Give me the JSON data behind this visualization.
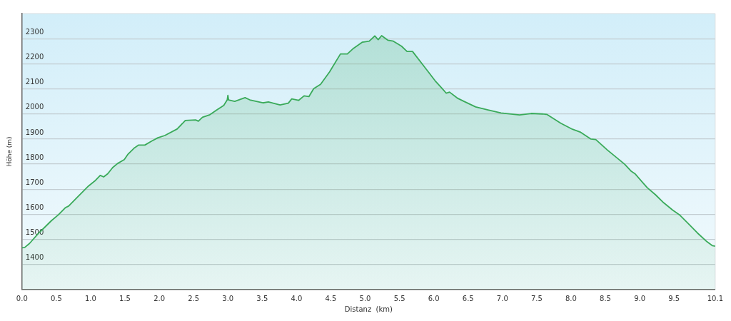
{
  "chart_data": {
    "type": "area",
    "xlabel": "Distanz  (km)",
    "ylabel": "Höhe (m)",
    "xlim": [
      0,
      10.1
    ],
    "xticks": [
      {
        "value": 0,
        "label": "0.0"
      },
      0.5,
      {
        "value": 1,
        "label": "1.0"
      },
      1.5,
      {
        "value": 2,
        "label": "2.0"
      },
      2.5,
      {
        "value": 3,
        "label": "3.0"
      },
      3.5,
      {
        "value": 4,
        "label": "4.0"
      },
      4.5,
      {
        "value": 5,
        "label": "5.0"
      },
      5.5,
      {
        "value": 6,
        "label": "6.0"
      },
      6.5,
      {
        "value": 7,
        "label": "7.0"
      },
      7.5,
      {
        "value": 8,
        "label": "8.0"
      },
      8.5,
      {
        "value": 9,
        "label": "9.0"
      },
      9.5,
      10.1
    ],
    "ylim": [
      1300,
      2400
    ],
    "yticks": [
      1400,
      1500,
      1600,
      1700,
      1800,
      1900,
      2000,
      2100,
      2200,
      2300
    ],
    "grid": "y",
    "legend": false,
    "marker": "none",
    "line_style": "solid",
    "series": [
      {
        "color": "#3aaa5a",
        "x": [
          0,
          0.04,
          0.11,
          0.24,
          0.33,
          0.43,
          0.53,
          0.63,
          0.68,
          0.81,
          0.97,
          1.07,
          1.14,
          1.19,
          1.25,
          1.32,
          1.39,
          1.49,
          1.54,
          1.64,
          1.7,
          1.79,
          1.89,
          1.98,
          2.08,
          2.26,
          2.38,
          2.53,
          2.57,
          2.63,
          2.73,
          2.84,
          2.94,
          2.99,
          3.0,
          3.01,
          3.1,
          3.25,
          3.32,
          3.51,
          3.59,
          3.76,
          3.88,
          3.93,
          4.03,
          4.11,
          4.18,
          4.25,
          4.35,
          4.48,
          4.64,
          4.74,
          4.82,
          4.96,
          5.06,
          5.14,
          5.19,
          5.24,
          5.33,
          5.41,
          5.53,
          5.61,
          5.69,
          5.86,
          6.02,
          6.12,
          6.18,
          6.23,
          6.35,
          6.44,
          6.61,
          6.79,
          6.98,
          7.25,
          7.42,
          7.58,
          7.65,
          7.85,
          8.02,
          8.14,
          8.29,
          8.36,
          8.53,
          8.78,
          8.88,
          8.93,
          9.11,
          9.23,
          9.35,
          9.48,
          9.58,
          9.72,
          9.84,
          9.98,
          10.06,
          10.1
        ],
        "values": [
          1467,
          1468,
          1484,
          1524,
          1548,
          1575,
          1598,
          1626,
          1633,
          1669,
          1713,
          1735,
          1755,
          1749,
          1762,
          1786,
          1802,
          1818,
          1838,
          1865,
          1876,
          1876,
          1892,
          1905,
          1914,
          1940,
          1974,
          1976,
          1971,
          1987,
          1996,
          2016,
          2034,
          2056,
          2074,
          2056,
          2050,
          2065,
          2056,
          2044,
          2048,
          2036,
          2043,
          2060,
          2054,
          2072,
          2069,
          2101,
          2118,
          2167,
          2239,
          2239,
          2259,
          2286,
          2290,
          2311,
          2296,
          2312,
          2294,
          2290,
          2270,
          2249,
          2249,
          2189,
          2132,
          2102,
          2083,
          2087,
          2062,
          2050,
          2028,
          2016,
          2004,
          1996,
          2002,
          2000,
          1998,
          1963,
          1939,
          1927,
          1900,
          1898,
          1856,
          1800,
          1771,
          1762,
          1706,
          1678,
          1646,
          1617,
          1598,
          1560,
          1526,
          1491,
          1475,
          1473
        ]
      }
    ]
  }
}
